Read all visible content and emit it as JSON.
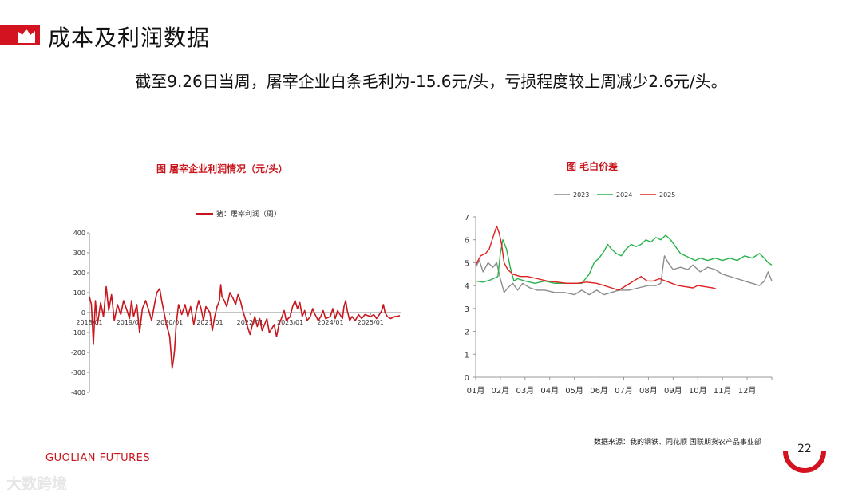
{
  "header": {
    "title": "成本及利润数据",
    "summary": "截至9.26日当周，屠宰企业白条毛利为-15.6元/头，亏损程度较上周减少2.6元/头。"
  },
  "left_chart": {
    "title": "图  屠宰企业利润情况（元/头）",
    "legend": "猪：屠宰利润（周）"
  },
  "right_chart": {
    "title": "图    毛白价差"
  },
  "footer": {
    "source": "数据来源：我的钢铁、同花顺  国联期货农产品事业部",
    "brand": "GUOLIAN FUTURES",
    "page": "22",
    "watermark": "大数跨境"
  },
  "colors": {
    "accent": "#c8161d",
    "y2023": "#8c8c8c",
    "y2024": "#2bb24c",
    "y2025": "#e02020"
  },
  "chart_data": [
    {
      "type": "line",
      "title": "图  屠宰企业利润情况（元/头）",
      "ylim": [
        -400,
        400
      ],
      "yticks": [
        400,
        300,
        200,
        100,
        0,
        -100,
        -200,
        -300,
        -400
      ],
      "xticks": [
        "2018/01",
        "2019/01",
        "2020/01",
        "2021/01",
        "2022/01",
        "2023/01",
        "2024/01",
        "2025/01"
      ],
      "xrange": [
        2018.0,
        2025.75
      ],
      "series": [
        {
          "name": "猪：屠宰利润（周）",
          "color": "#c8161d",
          "points": [
            [
              2018.0,
              80
            ],
            [
              2018.05,
              40
            ],
            [
              2018.1,
              -160
            ],
            [
              2018.15,
              60
            ],
            [
              2018.2,
              -60
            ],
            [
              2018.28,
              50
            ],
            [
              2018.35,
              -20
            ],
            [
              2018.42,
              130
            ],
            [
              2018.48,
              10
            ],
            [
              2018.55,
              90
            ],
            [
              2018.62,
              -40
            ],
            [
              2018.7,
              40
            ],
            [
              2018.78,
              -10
            ],
            [
              2018.85,
              60
            ],
            [
              2018.92,
              20
            ],
            [
              2019.0,
              -30
            ],
            [
              2019.05,
              60
            ],
            [
              2019.1,
              -20
            ],
            [
              2019.18,
              40
            ],
            [
              2019.25,
              -100
            ],
            [
              2019.32,
              20
            ],
            [
              2019.4,
              60
            ],
            [
              2019.48,
              10
            ],
            [
              2019.55,
              -40
            ],
            [
              2019.62,
              40
            ],
            [
              2019.68,
              100
            ],
            [
              2019.75,
              120
            ],
            [
              2019.8,
              60
            ],
            [
              2019.86,
              0
            ],
            [
              2019.92,
              -60
            ],
            [
              2020.0,
              -120
            ],
            [
              2020.03,
              -200
            ],
            [
              2020.06,
              -280
            ],
            [
              2020.09,
              -240
            ],
            [
              2020.12,
              -190
            ],
            [
              2020.16,
              -60
            ],
            [
              2020.22,
              40
            ],
            [
              2020.3,
              -10
            ],
            [
              2020.38,
              40
            ],
            [
              2020.45,
              -20
            ],
            [
              2020.52,
              30
            ],
            [
              2020.6,
              -60
            ],
            [
              2020.66,
              10
            ],
            [
              2020.72,
              60
            ],
            [
              2020.78,
              20
            ],
            [
              2020.84,
              -40
            ],
            [
              2020.9,
              30
            ],
            [
              2021.0,
              0
            ],
            [
              2021.06,
              -90
            ],
            [
              2021.12,
              -20
            ],
            [
              2021.18,
              30
            ],
            [
              2021.24,
              60
            ],
            [
              2021.27,
              140
            ],
            [
              2021.3,
              80
            ],
            [
              2021.36,
              60
            ],
            [
              2021.42,
              30
            ],
            [
              2021.5,
              100
            ],
            [
              2021.58,
              70
            ],
            [
              2021.64,
              40
            ],
            [
              2021.7,
              90
            ],
            [
              2021.76,
              60
            ],
            [
              2021.82,
              10
            ],
            [
              2021.88,
              -30
            ],
            [
              2021.92,
              -60
            ],
            [
              2022.0,
              -110
            ],
            [
              2022.06,
              -60
            ],
            [
              2022.12,
              -20
            ],
            [
              2022.18,
              -70
            ],
            [
              2022.24,
              -30
            ],
            [
              2022.3,
              -90
            ],
            [
              2022.36,
              -60
            ],
            [
              2022.42,
              -30
            ],
            [
              2022.48,
              -100
            ],
            [
              2022.54,
              -80
            ],
            [
              2022.6,
              -60
            ],
            [
              2022.66,
              -120
            ],
            [
              2022.72,
              -60
            ],
            [
              2022.78,
              -30
            ],
            [
              2022.85,
              10
            ],
            [
              2022.9,
              -40
            ],
            [
              2023.0,
              -20
            ],
            [
              2023.06,
              30
            ],
            [
              2023.12,
              60
            ],
            [
              2023.18,
              20
            ],
            [
              2023.24,
              50
            ],
            [
              2023.3,
              -20
            ],
            [
              2023.36,
              10
            ],
            [
              2023.42,
              -40
            ],
            [
              2023.5,
              -20
            ],
            [
              2023.56,
              20
            ],
            [
              2023.62,
              -10
            ],
            [
              2023.7,
              -40
            ],
            [
              2023.76,
              -20
            ],
            [
              2023.82,
              10
            ],
            [
              2023.88,
              -30
            ],
            [
              2024.0,
              -20
            ],
            [
              2024.06,
              20
            ],
            [
              2024.12,
              -30
            ],
            [
              2024.18,
              10
            ],
            [
              2024.24,
              -10
            ],
            [
              2024.3,
              -30
            ],
            [
              2024.34,
              30
            ],
            [
              2024.38,
              60
            ],
            [
              2024.42,
              10
            ],
            [
              2024.48,
              -40
            ],
            [
              2024.54,
              -20
            ],
            [
              2024.62,
              -40
            ],
            [
              2024.7,
              -10
            ],
            [
              2024.78,
              -30
            ],
            [
              2024.86,
              -10
            ],
            [
              2025.0,
              -20
            ],
            [
              2025.08,
              -10
            ],
            [
              2025.15,
              -30
            ],
            [
              2025.22,
              -10
            ],
            [
              2025.28,
              10
            ],
            [
              2025.32,
              40
            ],
            [
              2025.36,
              0
            ],
            [
              2025.42,
              -20
            ],
            [
              2025.5,
              -30
            ],
            [
              2025.6,
              -20
            ],
            [
              2025.68,
              -18
            ],
            [
              2025.73,
              -15.6
            ]
          ]
        }
      ]
    },
    {
      "type": "line",
      "title": "图    毛白价差",
      "ylim": [
        0,
        7
      ],
      "yticks": [
        0,
        1,
        2,
        3,
        4,
        5,
        6,
        7
      ],
      "xticks": [
        "01月",
        "02月",
        "03月",
        "04月",
        "05月",
        "06月",
        "07月",
        "08月",
        "09月",
        "10月",
        "11月",
        "12月"
      ],
      "xrange": [
        0,
        12
      ],
      "series": [
        {
          "name": "2023",
          "color": "#8c8c8c",
          "points": [
            [
              0,
              4.8
            ],
            [
              0.15,
              5.1
            ],
            [
              0.3,
              4.6
            ],
            [
              0.5,
              5.0
            ],
            [
              0.7,
              4.8
            ],
            [
              0.85,
              5.0
            ],
            [
              1.0,
              4.3
            ],
            [
              1.15,
              3.7
            ],
            [
              1.3,
              3.9
            ],
            [
              1.5,
              4.1
            ],
            [
              1.7,
              3.8
            ],
            [
              1.9,
              4.1
            ],
            [
              2.2,
              3.9
            ],
            [
              2.5,
              3.8
            ],
            [
              2.8,
              3.8
            ],
            [
              3.2,
              3.7
            ],
            [
              3.6,
              3.7
            ],
            [
              4.0,
              3.6
            ],
            [
              4.3,
              3.8
            ],
            [
              4.6,
              3.6
            ],
            [
              4.9,
              3.8
            ],
            [
              5.2,
              3.6
            ],
            [
              5.5,
              3.7
            ],
            [
              5.8,
              3.8
            ],
            [
              6.2,
              3.8
            ],
            [
              6.6,
              3.9
            ],
            [
              7.0,
              4.0
            ],
            [
              7.3,
              4.0
            ],
            [
              7.5,
              4.1
            ],
            [
              7.65,
              5.3
            ],
            [
              7.8,
              5.0
            ],
            [
              8.0,
              4.7
            ],
            [
              8.3,
              4.8
            ],
            [
              8.6,
              4.7
            ],
            [
              8.8,
              4.9
            ],
            [
              9.1,
              4.6
            ],
            [
              9.4,
              4.8
            ],
            [
              9.7,
              4.7
            ],
            [
              10.0,
              4.5
            ],
            [
              10.3,
              4.4
            ],
            [
              10.6,
              4.3
            ],
            [
              10.9,
              4.2
            ],
            [
              11.2,
              4.1
            ],
            [
              11.5,
              4.0
            ],
            [
              11.7,
              4.2
            ],
            [
              11.85,
              4.6
            ],
            [
              12.0,
              4.2
            ]
          ]
        },
        {
          "name": "2024",
          "color": "#2bb24c",
          "points": [
            [
              0,
              4.2
            ],
            [
              0.3,
              4.15
            ],
            [
              0.6,
              4.25
            ],
            [
              0.9,
              4.4
            ],
            [
              1.0,
              5.4
            ],
            [
              1.1,
              6.0
            ],
            [
              1.25,
              5.6
            ],
            [
              1.4,
              4.8
            ],
            [
              1.55,
              4.2
            ],
            [
              1.7,
              4.3
            ],
            [
              2.0,
              4.2
            ],
            [
              2.4,
              4.1
            ],
            [
              2.8,
              4.2
            ],
            [
              3.2,
              4.1
            ],
            [
              3.6,
              4.1
            ],
            [
              4.0,
              4.1
            ],
            [
              4.3,
              4.1
            ],
            [
              4.6,
              4.5
            ],
            [
              4.8,
              5.0
            ],
            [
              5.0,
              5.2
            ],
            [
              5.2,
              5.5
            ],
            [
              5.35,
              5.8
            ],
            [
              5.5,
              5.6
            ],
            [
              5.7,
              5.4
            ],
            [
              5.9,
              5.3
            ],
            [
              6.1,
              5.6
            ],
            [
              6.3,
              5.8
            ],
            [
              6.5,
              5.7
            ],
            [
              6.7,
              5.8
            ],
            [
              6.9,
              6.0
            ],
            [
              7.1,
              5.9
            ],
            [
              7.3,
              6.1
            ],
            [
              7.5,
              6.0
            ],
            [
              7.7,
              6.2
            ],
            [
              7.9,
              6.0
            ],
            [
              8.1,
              5.7
            ],
            [
              8.3,
              5.4
            ],
            [
              8.5,
              5.3
            ],
            [
              8.7,
              5.2
            ],
            [
              8.9,
              5.1
            ],
            [
              9.1,
              5.2
            ],
            [
              9.4,
              5.1
            ],
            [
              9.7,
              5.2
            ],
            [
              10.0,
              5.1
            ],
            [
              10.3,
              5.2
            ],
            [
              10.6,
              5.1
            ],
            [
              10.9,
              5.3
            ],
            [
              11.2,
              5.2
            ],
            [
              11.5,
              5.4
            ],
            [
              11.7,
              5.2
            ],
            [
              11.85,
              5.0
            ],
            [
              12.0,
              4.9
            ]
          ]
        },
        {
          "name": "2025",
          "color": "#e02020",
          "points": [
            [
              0,
              4.9
            ],
            [
              0.2,
              5.3
            ],
            [
              0.4,
              5.4
            ],
            [
              0.55,
              5.6
            ],
            [
              0.7,
              6.1
            ],
            [
              0.85,
              6.6
            ],
            [
              0.95,
              6.3
            ],
            [
              1.05,
              5.8
            ],
            [
              1.15,
              5.0
            ],
            [
              1.3,
              4.7
            ],
            [
              1.5,
              4.5
            ],
            [
              1.8,
              4.4
            ],
            [
              2.1,
              4.4
            ],
            [
              2.5,
              4.3
            ],
            [
              2.9,
              4.2
            ],
            [
              3.3,
              4.15
            ],
            [
              3.7,
              4.1
            ],
            [
              4.1,
              4.1
            ],
            [
              4.5,
              4.15
            ],
            [
              4.9,
              4.1
            ],
            [
              5.2,
              4.0
            ],
            [
              5.5,
              3.9
            ],
            [
              5.8,
              3.8
            ],
            [
              6.1,
              4.0
            ],
            [
              6.4,
              4.2
            ],
            [
              6.7,
              4.4
            ],
            [
              6.95,
              4.2
            ],
            [
              7.2,
              4.2
            ],
            [
              7.45,
              4.3
            ],
            [
              7.7,
              4.2
            ],
            [
              7.95,
              4.1
            ],
            [
              8.2,
              4.0
            ],
            [
              8.5,
              3.95
            ],
            [
              8.8,
              3.9
            ],
            [
              9.0,
              4.0
            ],
            [
              9.3,
              3.95
            ],
            [
              9.6,
              3.9
            ],
            [
              9.75,
              3.85
            ]
          ]
        }
      ]
    }
  ]
}
